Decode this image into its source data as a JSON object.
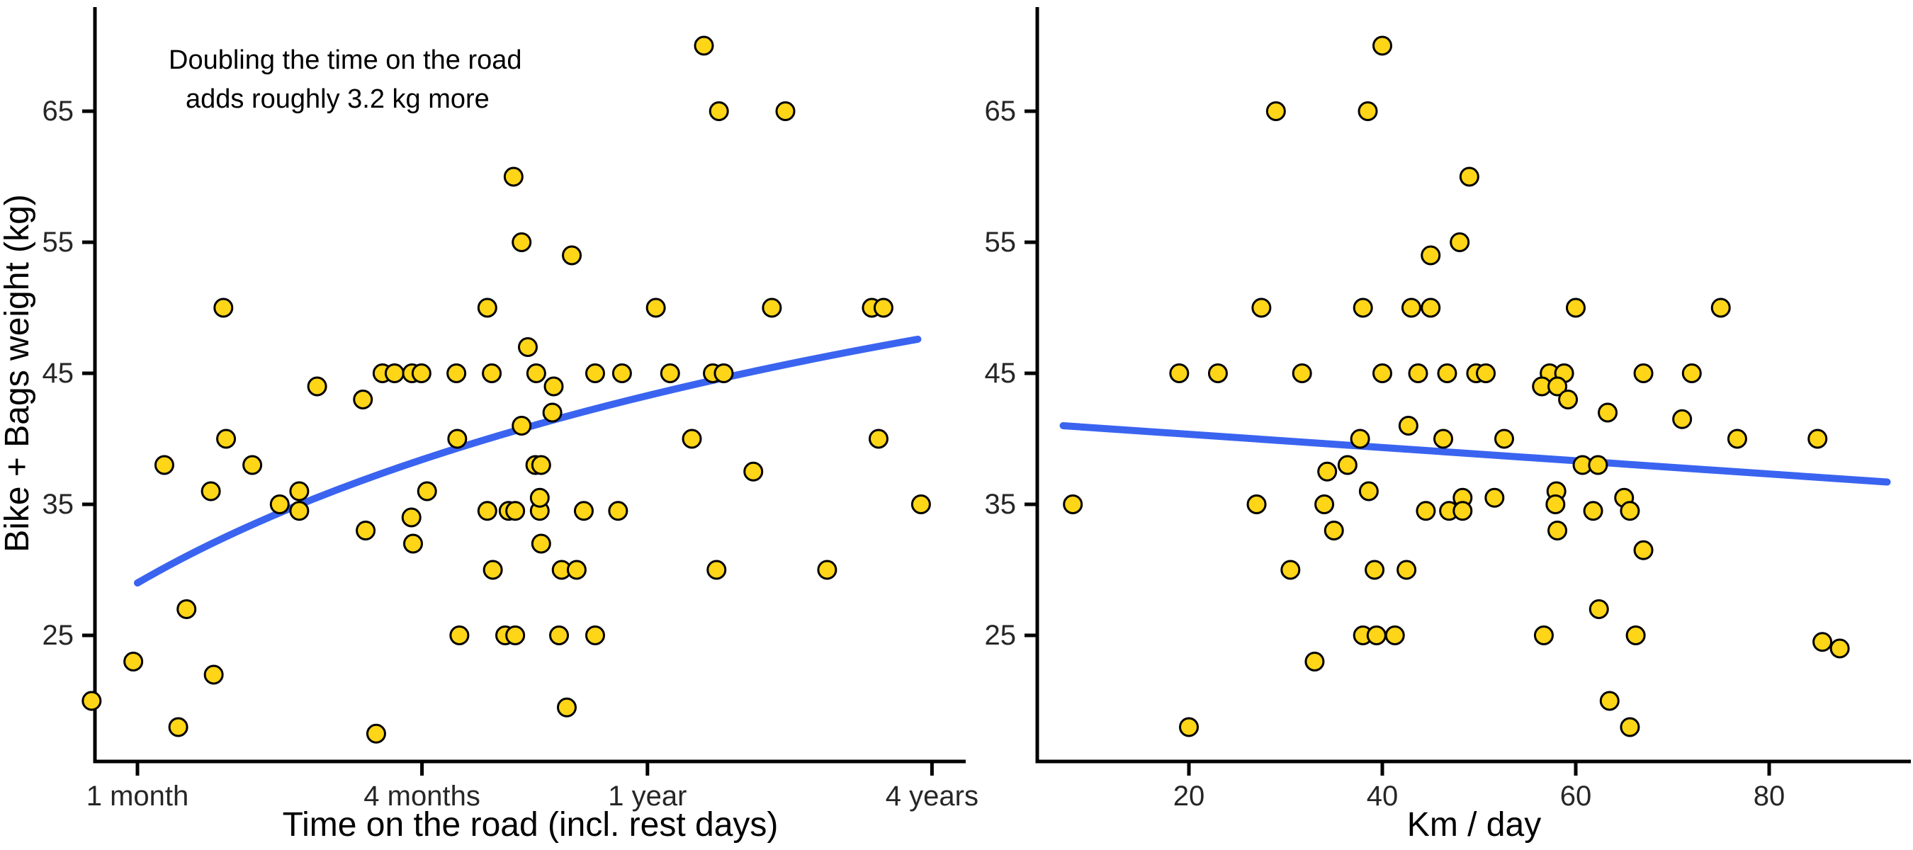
{
  "figure": {
    "background": "#ffffff",
    "point_fill": "#FFD517",
    "point_stroke": "#000000",
    "trend_color": "#3A64F0",
    "axis_color": "#000000"
  },
  "annotation": {
    "line1": "Doubling the time on the road",
    "line2": "adds roughly 3.2 kg more"
  },
  "chart_data": [
    {
      "type": "scatter",
      "title": "",
      "xlabel": "Time on the road (incl. rest days)",
      "ylabel": "Bike + Bags weight (kg)",
      "x_scale": "log",
      "x_unit": "months",
      "x_ticks": [
        {
          "label": "1 month",
          "value": 1
        },
        {
          "label": "4 months",
          "value": 4
        },
        {
          "label": "1 year",
          "value": 12
        },
        {
          "label": "4 years",
          "value": 48
        }
      ],
      "y_ticks": [
        25,
        35,
        45,
        55,
        65
      ],
      "ylim": [
        14,
        72
      ],
      "xlim": [
        0.75,
        55
      ],
      "grid": false,
      "legend": "none",
      "points": [
        [
          0.8,
          20
        ],
        [
          0.98,
          23
        ],
        [
          1.22,
          18
        ],
        [
          1.27,
          27
        ],
        [
          1.45,
          22
        ],
        [
          3.2,
          17.5
        ],
        [
          1.14,
          38
        ],
        [
          1.43,
          36
        ],
        [
          1.54,
          40
        ],
        [
          1.75,
          38
        ],
        [
          1.52,
          50
        ],
        [
          2.0,
          35
        ],
        [
          2.2,
          36
        ],
        [
          2.2,
          34.5
        ],
        [
          3.04,
          33
        ],
        [
          3.8,
          34
        ],
        [
          3.83,
          32
        ],
        [
          4.1,
          36
        ],
        [
          4.75,
          40
        ],
        [
          2.4,
          44
        ],
        [
          3.0,
          43
        ],
        [
          3.3,
          45
        ],
        [
          3.5,
          45
        ],
        [
          3.81,
          45
        ],
        [
          3.99,
          45
        ],
        [
          4.73,
          45
        ],
        [
          5.62,
          45
        ],
        [
          6.98,
          45
        ],
        [
          9.3,
          45
        ],
        [
          10.6,
          45
        ],
        [
          13.4,
          45
        ],
        [
          16.5,
          45
        ],
        [
          17.4,
          45
        ],
        [
          5.5,
          50
        ],
        [
          6.25,
          60
        ],
        [
          6.5,
          55
        ],
        [
          8.3,
          54
        ],
        [
          6.7,
          47
        ],
        [
          6.5,
          41
        ],
        [
          7.55,
          42
        ],
        [
          7.6,
          44
        ],
        [
          6.95,
          38
        ],
        [
          7.15,
          38
        ],
        [
          5.5,
          34.5
        ],
        [
          6.1,
          34.5
        ],
        [
          6.3,
          34.5
        ],
        [
          7.1,
          34.5
        ],
        [
          7.1,
          35.5
        ],
        [
          8.8,
          34.5
        ],
        [
          10.4,
          34.5
        ],
        [
          7.15,
          32
        ],
        [
          5.65,
          30
        ],
        [
          7.9,
          30
        ],
        [
          8.5,
          30
        ],
        [
          4.8,
          25
        ],
        [
          6.0,
          25
        ],
        [
          6.3,
          25
        ],
        [
          7.8,
          25
        ],
        [
          9.3,
          25
        ],
        [
          8.1,
          19.5
        ],
        [
          12.5,
          50
        ],
        [
          22,
          50
        ],
        [
          35.8,
          50
        ],
        [
          37.9,
          50
        ],
        [
          15.8,
          70
        ],
        [
          17,
          65
        ],
        [
          23.5,
          65
        ],
        [
          14.9,
          40
        ],
        [
          20.1,
          37.5
        ],
        [
          16.8,
          30
        ],
        [
          28.8,
          30
        ],
        [
          37,
          40
        ],
        [
          45.5,
          35
        ]
      ],
      "trend": {
        "shape": "quadratic",
        "from": [
          1.0,
          29.0
        ],
        "control": [
          3.54,
          40.5
        ],
        "to": [
          44.8,
          47.6
        ]
      }
    },
    {
      "type": "scatter",
      "title": "",
      "xlabel": "Km / day",
      "ylabel": "",
      "x_scale": "linear",
      "x_unit": "km/day",
      "x_ticks": [
        {
          "label": "20",
          "value": 20
        },
        {
          "label": "40",
          "value": 40
        },
        {
          "label": "60",
          "value": 60
        },
        {
          "label": "80",
          "value": 80
        }
      ],
      "y_ticks": [
        25,
        35,
        45,
        55,
        65
      ],
      "ylim": [
        14,
        72
      ],
      "xlim": [
        5,
        93
      ],
      "grid": false,
      "legend": "none",
      "points": [
        [
          40,
          70
        ],
        [
          29,
          65
        ],
        [
          38.5,
          65
        ],
        [
          49,
          60
        ],
        [
          48,
          55
        ],
        [
          45,
          54
        ],
        [
          27.5,
          50
        ],
        [
          38,
          50
        ],
        [
          43,
          50
        ],
        [
          45,
          50
        ],
        [
          60,
          50
        ],
        [
          75,
          50
        ],
        [
          19,
          45
        ],
        [
          23,
          45
        ],
        [
          31.7,
          45
        ],
        [
          40,
          45
        ],
        [
          43.7,
          45
        ],
        [
          46.7,
          45
        ],
        [
          49.7,
          45
        ],
        [
          50.7,
          45
        ],
        [
          57.3,
          45
        ],
        [
          58.8,
          45
        ],
        [
          67,
          45
        ],
        [
          72,
          45
        ],
        [
          56.5,
          44
        ],
        [
          58.1,
          44
        ],
        [
          59.2,
          43
        ],
        [
          63.3,
          42
        ],
        [
          71,
          41.5
        ],
        [
          42.7,
          41
        ],
        [
          37.7,
          40
        ],
        [
          46.3,
          40
        ],
        [
          52.6,
          40
        ],
        [
          76.7,
          40
        ],
        [
          85,
          40
        ],
        [
          36.4,
          38
        ],
        [
          60.7,
          38
        ],
        [
          62.3,
          38
        ],
        [
          34.3,
          37.5
        ],
        [
          38.6,
          36
        ],
        [
          58,
          36
        ],
        [
          8,
          35
        ],
        [
          27,
          35
        ],
        [
          34,
          35
        ],
        [
          57.9,
          35
        ],
        [
          48.3,
          35.5
        ],
        [
          51.6,
          35.5
        ],
        [
          65,
          35.5
        ],
        [
          44.5,
          34.5
        ],
        [
          46.9,
          34.5
        ],
        [
          48.3,
          34.5
        ],
        [
          61.8,
          34.5
        ],
        [
          65.6,
          34.5
        ],
        [
          35,
          33
        ],
        [
          58.1,
          33
        ],
        [
          67,
          31.5
        ],
        [
          30.5,
          30
        ],
        [
          39.2,
          30
        ],
        [
          42.5,
          30
        ],
        [
          62.4,
          27
        ],
        [
          38,
          25
        ],
        [
          39.4,
          25
        ],
        [
          41.3,
          25
        ],
        [
          56.7,
          25
        ],
        [
          66.2,
          25
        ],
        [
          85.5,
          24.5
        ],
        [
          87.3,
          24
        ],
        [
          33,
          23
        ],
        [
          63.5,
          20
        ],
        [
          20,
          18
        ],
        [
          65.6,
          18
        ]
      ],
      "trend": {
        "shape": "linear",
        "from": [
          7.0,
          41.0
        ],
        "to": [
          92.2,
          36.7
        ]
      }
    }
  ]
}
